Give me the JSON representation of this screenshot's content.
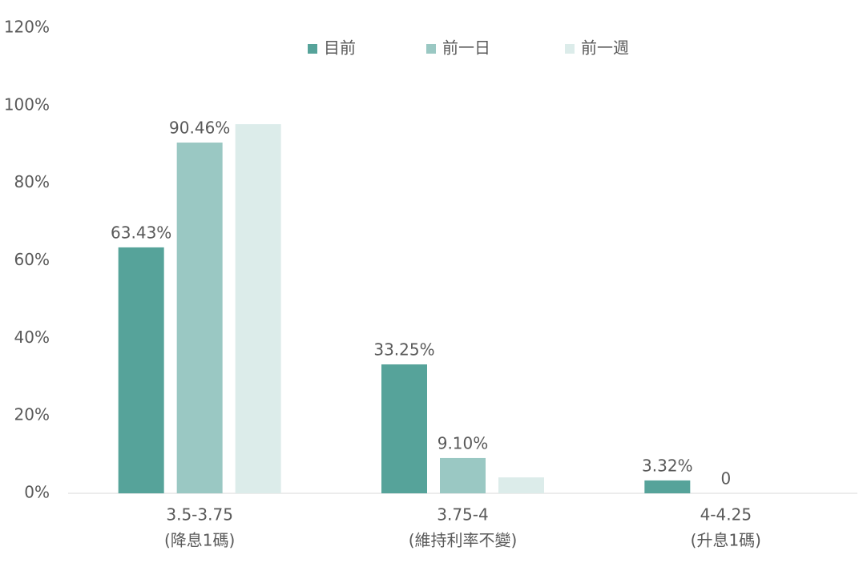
{
  "chart_data": {
    "type": "bar",
    "categories": [
      [
        "3.5-3.75",
        "(降息1碼)"
      ],
      [
        "3.75-4",
        "(維持利率不變)"
      ],
      [
        "4-4.25",
        "(升息1碼)"
      ]
    ],
    "series": [
      {
        "name": "目前",
        "color": "#56a39a",
        "values": [
          63.43,
          33.25,
          3.32
        ],
        "value_labels": [
          "63.43%",
          "33.25%",
          "3.32%"
        ]
      },
      {
        "name": "前一日",
        "color": "#9ac8c3",
        "values": [
          90.46,
          9.1,
          0
        ],
        "value_labels": [
          "90.46%",
          "9.10%",
          "0"
        ]
      },
      {
        "name": "前一週",
        "color": "#dcecea",
        "values": [
          95.2,
          4.1,
          0
        ]
      }
    ],
    "ylim": [
      0,
      120
    ],
    "yticks": [
      {
        "value": 0,
        "label": "0%"
      },
      {
        "value": 20,
        "label": "20%"
      },
      {
        "value": 40,
        "label": "40%"
      },
      {
        "value": 60,
        "label": "60%"
      },
      {
        "value": 80,
        "label": "80%"
      },
      {
        "value": 100,
        "label": "100%"
      },
      {
        "value": 120,
        "label": "120%"
      }
    ],
    "grid": false,
    "legend": "top"
  }
}
